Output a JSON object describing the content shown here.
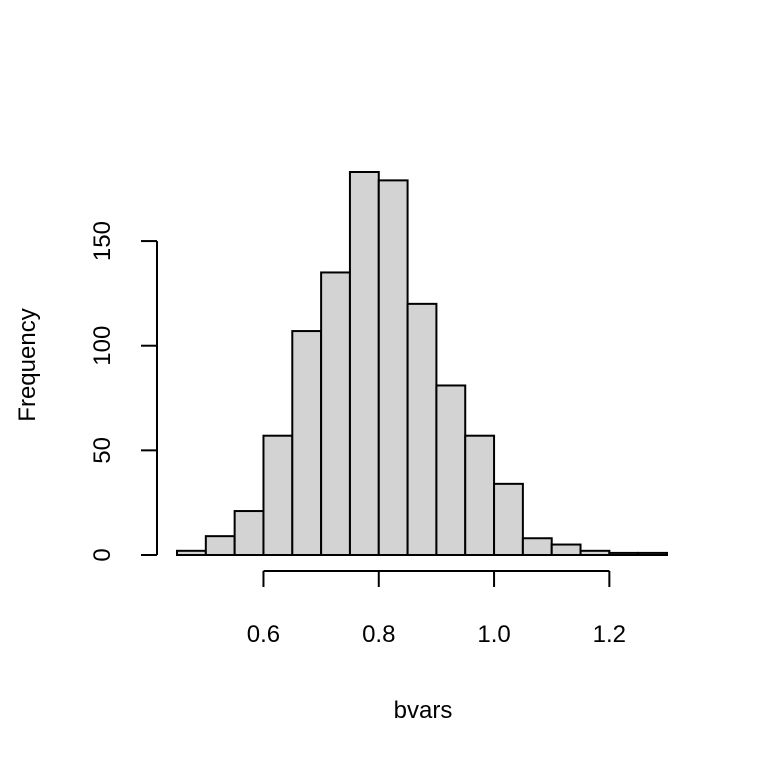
{
  "chart_data": {
    "type": "bar",
    "subtype": "histogram",
    "xlabel": "bvars",
    "ylabel": "Frequency",
    "bin_edges": [
      0.45,
      0.5,
      0.55,
      0.6,
      0.65,
      0.7,
      0.75,
      0.8,
      0.85,
      0.9,
      0.95,
      1.0,
      1.05,
      1.1,
      1.15,
      1.2,
      1.25,
      1.3
    ],
    "values": [
      2,
      9,
      21,
      57,
      107,
      135,
      183,
      179,
      120,
      81,
      57,
      34,
      8,
      5,
      2,
      1,
      1
    ],
    "x_ticks": [
      0.6,
      0.8,
      1.0,
      1.2
    ],
    "x_tick_labels": [
      "0.6",
      "0.8",
      "1.0",
      "1.2"
    ],
    "y_ticks": [
      0,
      50,
      100,
      150
    ],
    "y_tick_labels": [
      "0",
      "50",
      "100",
      "150"
    ],
    "xlim": [
      0.45,
      1.3
    ],
    "ylim": [
      0,
      183
    ],
    "bar_color": "#d3d3d3",
    "edge_color": "#000000",
    "grid": false
  }
}
